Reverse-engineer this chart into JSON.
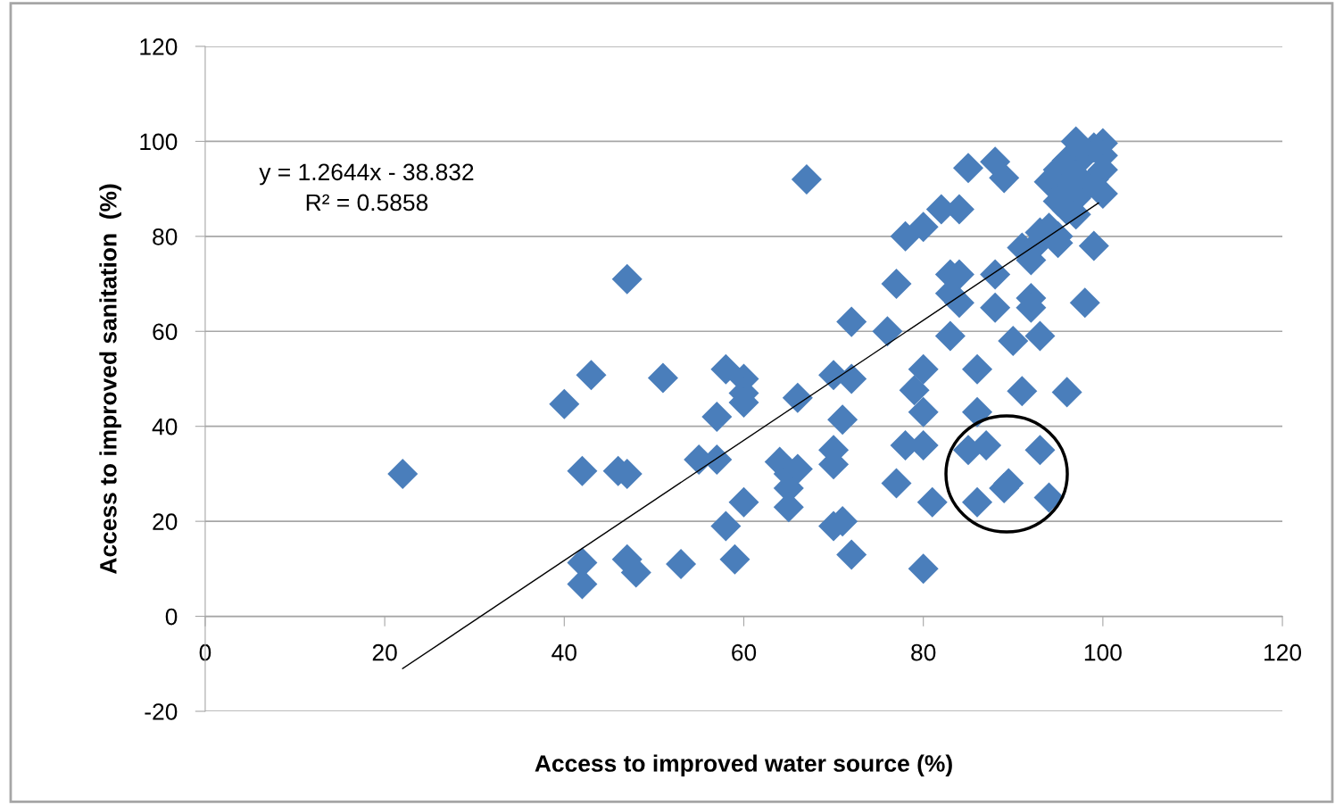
{
  "chart_data": {
    "type": "scatter",
    "xlabel": "Access to improved water source (%)",
    "ylabel": "Access to improved sanitation  (%)",
    "annotations": [
      "y = 1.2644x - 38.832\nR² = 0.5858"
    ],
    "xlim": [
      0,
      120
    ],
    "xticks": [
      0,
      20,
      40,
      60,
      80,
      100,
      120
    ],
    "ylim": [
      -20,
      120
    ],
    "yticks": [
      -20,
      0,
      20,
      40,
      60,
      80,
      100,
      120
    ],
    "grid": "y",
    "marker": "diamond",
    "series": [
      {
        "color": "#4a7ebb",
        "x": [
          22,
          40,
          43,
          42,
          46,
          47,
          47,
          42,
          42,
          47,
          48,
          53,
          51,
          57,
          55,
          57,
          58,
          60,
          60,
          60,
          58,
          59,
          60,
          66,
          64,
          65,
          66,
          65,
          65,
          67,
          70,
          72,
          71,
          70,
          70,
          70,
          71,
          72,
          72,
          76,
          77,
          78,
          80,
          77,
          78,
          80,
          79,
          80,
          80,
          81,
          80,
          82,
          84,
          85,
          88,
          89,
          83,
          84,
          83,
          84,
          83,
          88,
          88,
          86,
          86,
          85,
          87,
          86,
          89,
          89.5,
          93,
          94,
          90,
          93,
          91,
          96,
          92,
          92,
          98,
          99,
          91,
          92,
          93,
          95,
          95,
          94,
          95,
          96,
          98,
          99,
          100,
          100,
          100,
          99,
          98,
          97,
          96,
          94,
          93,
          97,
          100,
          97,
          96,
          95,
          97
        ],
        "values": [
          30,
          44.7,
          50.8,
          30.6,
          30.6,
          30,
          71,
          11.3,
          6.8,
          12,
          9.2,
          11,
          50.2,
          42,
          33,
          33,
          52,
          50,
          47,
          45,
          19,
          12,
          24,
          46,
          32.5,
          30,
          31,
          27,
          23,
          92,
          50.8,
          50,
          41.4,
          35,
          32,
          19,
          20,
          13,
          62,
          60,
          70,
          80,
          82,
          28,
          36,
          36,
          47.6,
          52,
          43,
          24,
          10,
          85.7,
          85.7,
          94.4,
          95.7,
          92.3,
          72,
          72,
          68,
          66,
          59,
          72,
          65,
          52,
          43,
          35,
          36,
          24,
          27,
          28,
          35,
          25,
          58,
          59,
          47.4,
          47.2,
          67,
          65,
          66,
          78,
          77.6,
          75,
          79,
          78.6,
          80,
          91.5,
          94,
          96,
          97,
          98.7,
          99.6,
          97,
          94,
          92,
          90,
          88,
          85.5,
          81.8,
          80.8,
          84.6,
          89,
          93,
          90,
          87.4,
          100
        ]
      },
      {
        "type": "line",
        "color": "#000000",
        "marker": "none",
        "x": [
          22,
          99.5
        ],
        "values": [
          -11,
          87
        ]
      }
    ]
  }
}
